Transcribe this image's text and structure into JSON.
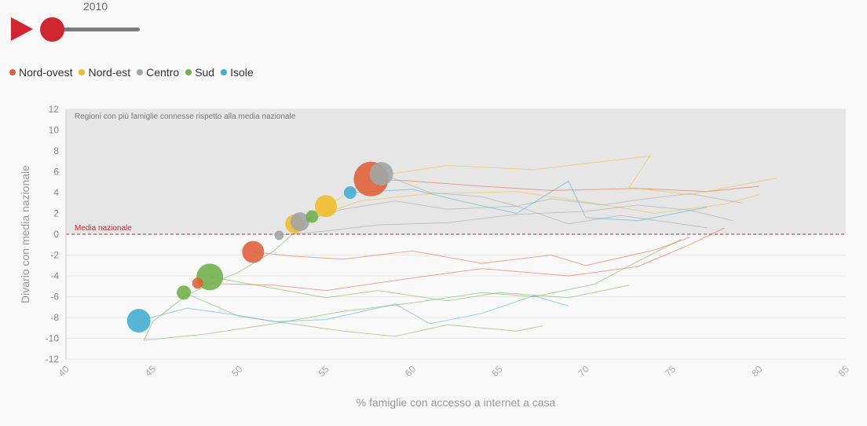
{
  "controls": {
    "year": "2010",
    "play_color": "#d0262f",
    "slider_color": "#d0262f"
  },
  "legend": [
    {
      "label": "Nord-ovest",
      "color": "#e0603c"
    },
    {
      "label": "Nord-est",
      "color": "#f0bd2a"
    },
    {
      "label": "Centro",
      "color": "#a0a6a6"
    },
    {
      "label": "Sud",
      "color": "#72b04b"
    },
    {
      "label": "Isole",
      "color": "#45aed3"
    }
  ],
  "chart_data": {
    "type": "scatter",
    "xlabel": "% famiglie con accesso a internet a casa",
    "ylabel": "Divario con media nazionale",
    "xlim": [
      40,
      85
    ],
    "ylim": [
      -12,
      12
    ],
    "xticks": [
      "40",
      "45",
      "50",
      "55",
      "60",
      "65",
      "70",
      "75",
      "80",
      "85"
    ],
    "yticks": [
      "12",
      "10",
      "8",
      "6",
      "4",
      "2",
      "0",
      "-2",
      "-4",
      "-6",
      "-8",
      "-10",
      "-12"
    ],
    "band_label": "Regioni con più famiglie connesse rispetto alla media nazionale",
    "reference_line": {
      "y": 0,
      "label": "Media nazionale",
      "color": "#c0272d"
    },
    "grid": true,
    "points": [
      {
        "group": "Nord-ovest",
        "x": 57.6,
        "y": 5.3,
        "size": 22
      },
      {
        "group": "Nord-ovest",
        "x": 50.8,
        "y": -1.7,
        "size": 14
      },
      {
        "group": "Nord-ovest",
        "x": 47.6,
        "y": -4.7,
        "size": 7
      },
      {
        "group": "Nord-est",
        "x": 55.0,
        "y": 2.7,
        "size": 14
      },
      {
        "group": "Nord-est",
        "x": 53.2,
        "y": 1.0,
        "size": 12
      },
      {
        "group": "Centro",
        "x": 58.2,
        "y": 5.8,
        "size": 15
      },
      {
        "group": "Centro",
        "x": 53.5,
        "y": 1.2,
        "size": 12
      },
      {
        "group": "Centro",
        "x": 52.3,
        "y": -0.1,
        "size": 6
      },
      {
        "group": "Sud",
        "x": 48.3,
        "y": -4.1,
        "size": 17
      },
      {
        "group": "Sud",
        "x": 46.8,
        "y": -5.6,
        "size": 9
      },
      {
        "group": "Sud",
        "x": 54.2,
        "y": 1.7,
        "size": 8
      },
      {
        "group": "Isole",
        "x": 44.2,
        "y": -8.3,
        "size": 15
      },
      {
        "group": "Isole",
        "x": 56.4,
        "y": 4.0,
        "size": 8
      }
    ],
    "trails": [
      {
        "group": "Nord-ovest",
        "points": [
          [
            57.6,
            5.3
          ],
          [
            60,
            5.1
          ],
          [
            64,
            4.6
          ],
          [
            68,
            4.2
          ],
          [
            73,
            4.4
          ],
          [
            77,
            4.1
          ],
          [
            80,
            4.6
          ]
        ]
      },
      {
        "group": "Nord-ovest",
        "points": [
          [
            50.8,
            -1.7
          ],
          [
            53,
            -2.1
          ],
          [
            56,
            -2.4
          ],
          [
            60,
            -1.6
          ],
          [
            64,
            -2.8
          ],
          [
            68,
            -2.0
          ],
          [
            70,
            -3.0
          ],
          [
            74,
            -1.5
          ],
          [
            76,
            -0.3
          ]
        ]
      },
      {
        "group": "Nord-ovest",
        "points": [
          [
            47.6,
            -4.7
          ],
          [
            52,
            -4.9
          ],
          [
            55,
            -5.4
          ],
          [
            60,
            -4.2
          ],
          [
            64,
            -3.3
          ],
          [
            69,
            -4.0
          ],
          [
            73,
            -3.1
          ],
          [
            76,
            -1.0
          ],
          [
            78,
            0.6
          ]
        ]
      },
      {
        "group": "Nord-est",
        "points": [
          [
            55,
            2.7
          ],
          [
            58,
            5.6
          ],
          [
            62,
            6.6
          ],
          [
            67,
            6.2
          ],
          [
            70,
            6.8
          ],
          [
            73.7,
            7.5
          ],
          [
            72.5,
            4.5
          ],
          [
            76,
            3.8
          ],
          [
            81,
            5.4
          ]
        ]
      },
      {
        "group": "Nord-est",
        "points": [
          [
            53.2,
            1.0
          ],
          [
            57,
            3.2
          ],
          [
            61,
            3.9
          ],
          [
            66,
            4.1
          ],
          [
            70,
            3.1
          ],
          [
            74,
            2.0
          ],
          [
            78,
            2.9
          ],
          [
            80,
            3.8
          ]
        ]
      },
      {
        "group": "Centro",
        "points": [
          [
            58.2,
            5.8
          ],
          [
            61,
            4.0
          ],
          [
            64,
            3.6
          ],
          [
            66,
            2.7
          ],
          [
            68,
            3.4
          ],
          [
            71,
            2.8
          ],
          [
            73,
            3.3
          ],
          [
            76,
            3.9
          ],
          [
            79,
            3.0
          ]
        ]
      },
      {
        "group": "Centro",
        "points": [
          [
            53.5,
            1.2
          ],
          [
            56,
            2.4
          ],
          [
            59,
            3.2
          ],
          [
            62,
            2.4
          ],
          [
            66,
            2.7
          ],
          [
            69,
            1.0
          ],
          [
            72,
            1.8
          ],
          [
            75,
            1.1
          ],
          [
            77,
            0.6
          ]
        ]
      },
      {
        "group": "Centro",
        "points": [
          [
            52.3,
            -0.1
          ],
          [
            55,
            0.3
          ],
          [
            58,
            0.9
          ],
          [
            62,
            1.1
          ],
          [
            66,
            1.9
          ],
          [
            70,
            2.2
          ],
          [
            73,
            2.8
          ],
          [
            76,
            2.3
          ],
          [
            78.5,
            1.3
          ]
        ]
      },
      {
        "group": "Sud",
        "points": [
          [
            48.3,
            -4.1
          ],
          [
            52,
            -5.2
          ],
          [
            55,
            -6.1
          ],
          [
            58,
            -5.4
          ],
          [
            62,
            -6.4
          ],
          [
            65,
            -5.6
          ],
          [
            69,
            -6.1
          ],
          [
            72.5,
            -4.9
          ]
        ]
      },
      {
        "group": "Sud",
        "points": [
          [
            46.8,
            -5.6
          ],
          [
            50,
            -7.9
          ],
          [
            53,
            -8.6
          ],
          [
            56,
            -9.3
          ],
          [
            59,
            -9.8
          ],
          [
            62,
            -8.7
          ],
          [
            66,
            -9.3
          ],
          [
            67.5,
            -8.8
          ]
        ]
      },
      {
        "group": "Sud",
        "points": [
          [
            54.2,
            1.7
          ],
          [
            52,
            -1.6
          ],
          [
            50,
            -3.6
          ],
          [
            47,
            -5.8
          ],
          [
            45,
            -8.4
          ],
          [
            44.5,
            -10.2
          ],
          [
            48,
            -9.6
          ],
          [
            52,
            -8.6
          ],
          [
            56,
            -7.4
          ],
          [
            60,
            -6.6
          ],
          [
            64,
            -5.6
          ],
          [
            67,
            -6.0
          ],
          [
            70.5,
            -4.8
          ],
          [
            73,
            -2.6
          ],
          [
            75.5,
            -0.5
          ]
        ]
      },
      {
        "group": "Isole",
        "points": [
          [
            44.2,
            -8.3
          ],
          [
            47,
            -7.1
          ],
          [
            50,
            -7.8
          ],
          [
            52,
            -8.4
          ],
          [
            55,
            -8.2
          ],
          [
            59,
            -6.7
          ],
          [
            61,
            -8.6
          ],
          [
            64,
            -7.6
          ],
          [
            67,
            -5.9
          ],
          [
            69,
            -6.9
          ]
        ]
      },
      {
        "group": "Isole",
        "points": [
          [
            56.4,
            4.0
          ],
          [
            60,
            4.3
          ],
          [
            63,
            3.1
          ],
          [
            66,
            2.0
          ],
          [
            69,
            5.1
          ],
          [
            70,
            1.6
          ],
          [
            73,
            1.3
          ],
          [
            77,
            2.6
          ]
        ]
      }
    ]
  }
}
